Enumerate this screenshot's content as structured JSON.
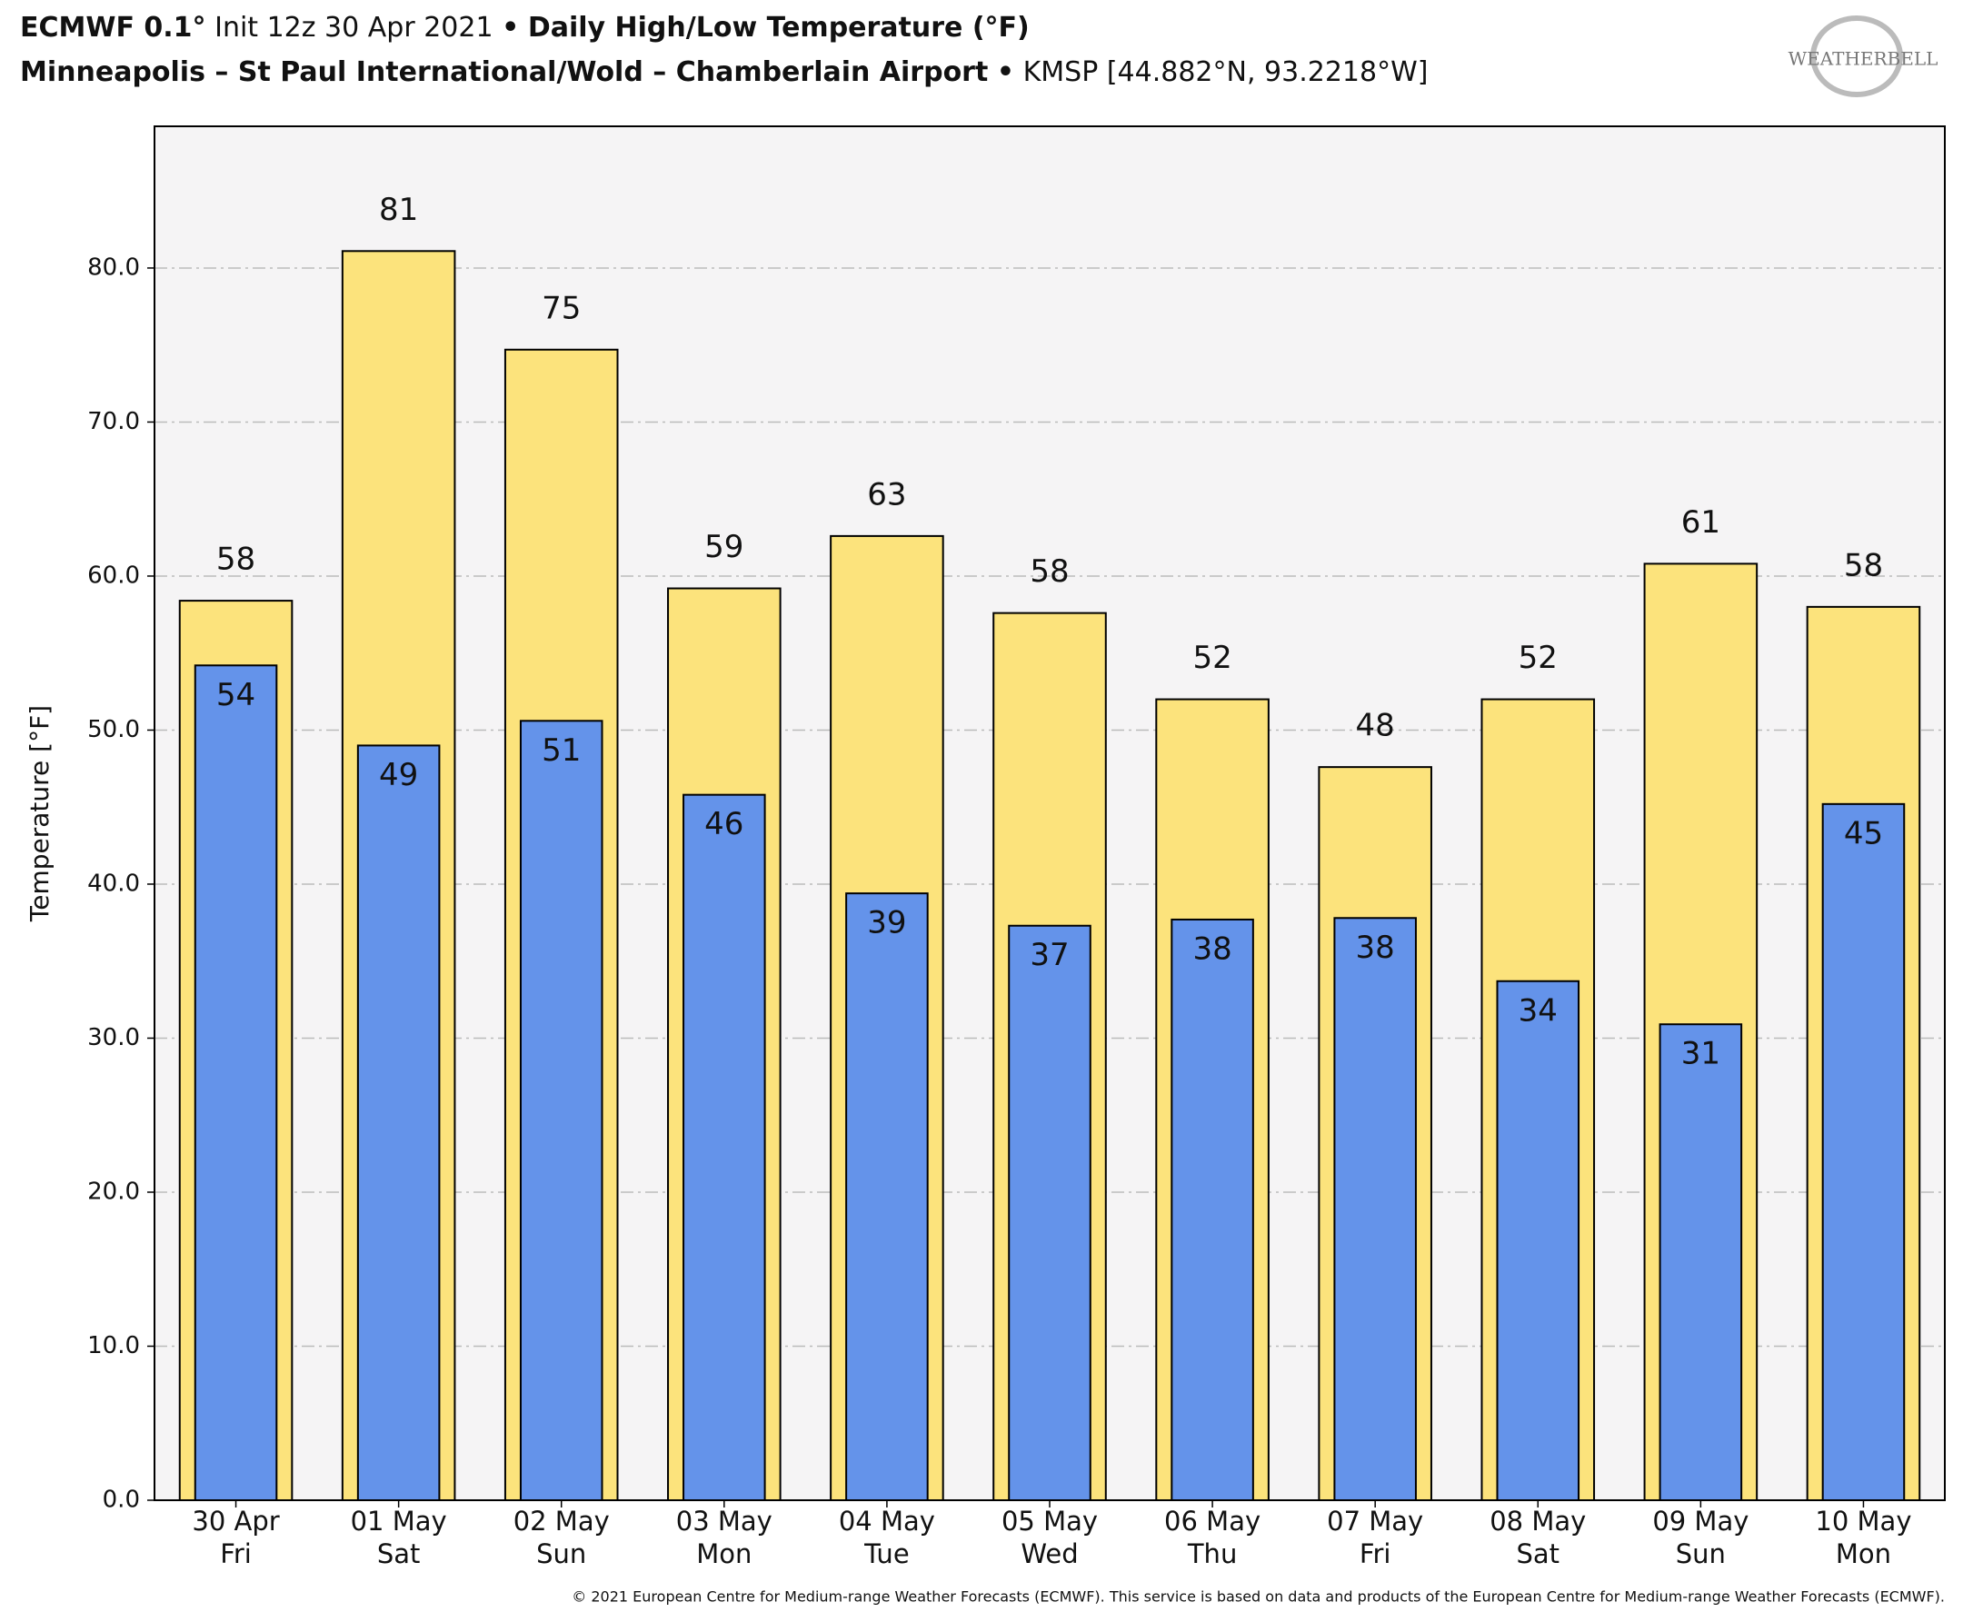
{
  "chart_data": {
    "type": "bar",
    "title": {
      "model": "ECMWF 0.1°",
      "init": "Init 12z 30 Apr 2021",
      "separator": "•",
      "product": "Daily High/Low Temperature (°F)"
    },
    "subtitle": {
      "station": "Minneapolis – St Paul International/Wold – Chamberlain Airport",
      "separator": "•",
      "location": "KMSP [44.882°N, 93.2218°W]"
    },
    "logo": "WEATHERBELL",
    "y_label": "Temperature [°F]",
    "credit": "© 2021 European Centre for Medium-range Weather Forecasts (ECMWF). This service is based on data and products of the European Centre for Medium-range Weather Forecasts (ECMWF).",
    "categories": [
      "30 Apr",
      "01 May",
      "02 May",
      "03 May",
      "04 May",
      "05 May",
      "06 May",
      "07 May",
      "08 May",
      "09 May",
      "10 May"
    ],
    "weekdays": [
      "Fri",
      "Sat",
      "Sun",
      "Mon",
      "Tue",
      "Wed",
      "Thu",
      "Fri",
      "Sat",
      "Sun",
      "Mon"
    ],
    "series": [
      {
        "color": "#fce37c",
        "values": [
          58.4,
          81.1,
          74.7,
          59.2,
          62.6,
          57.6,
          52.0,
          47.6,
          52.0,
          60.8,
          58.0
        ],
        "value_labels": [
          "58",
          "81",
          "75",
          "59",
          "63",
          "58",
          "52",
          "48",
          "52",
          "61",
          "58"
        ]
      },
      {
        "color": "#6493ea",
        "values": [
          54.2,
          49.0,
          50.6,
          45.8,
          39.4,
          37.3,
          37.7,
          37.8,
          33.7,
          30.9,
          45.2
        ],
        "value_labels": [
          "54",
          "49",
          "51",
          "46",
          "39",
          "37",
          "38",
          "38",
          "34",
          "31",
          "45"
        ]
      }
    ],
    "ylim": [
      0,
      89.2
    ],
    "yticks": [
      {
        "value": 0,
        "label": "0.0"
      },
      {
        "value": 10,
        "label": "10.0"
      },
      {
        "value": 20,
        "label": "20.0"
      },
      {
        "value": 30,
        "label": "30.0"
      },
      {
        "value": 40,
        "label": "40.0"
      },
      {
        "value": 50,
        "label": "50.0"
      },
      {
        "value": 60,
        "label": "60.0"
      },
      {
        "value": 70,
        "label": "70.0"
      },
      {
        "value": 80,
        "label": "80.0"
      }
    ],
    "grid": true
  }
}
